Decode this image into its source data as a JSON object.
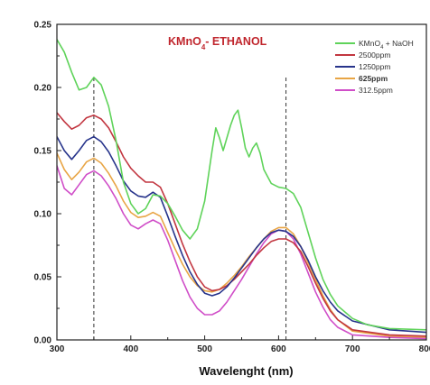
{
  "chart_data": {
    "type": "line",
    "title": "KMnO4- ETHANOL",
    "title_parts": {
      "pre": "KMnO",
      "sub": "4",
      "post": "- ETHANOL"
    },
    "xlabel": "Wavelenght (nm)",
    "ylabel": "",
    "xlim": [
      300,
      800
    ],
    "ylim": [
      0,
      0.25
    ],
    "xticks": [
      "300",
      "400",
      "500",
      "600",
      "700",
      "800"
    ],
    "yticks": [
      "0.00",
      "0.05",
      "0.10",
      "0.15",
      "0.20",
      "0.25"
    ],
    "grid": false,
    "legend_position": "top-right",
    "reference_lines_x": [
      350,
      610
    ],
    "series": [
      {
        "name": "KMnO4 + NaOH",
        "legend_parts": {
          "pre": "KMnO",
          "sub": "4",
          "post": "+ NaOH"
        },
        "bold": false,
        "color": "#5fd35a",
        "points": [
          [
            300,
            0.238
          ],
          [
            310,
            0.228
          ],
          [
            320,
            0.212
          ],
          [
            330,
            0.198
          ],
          [
            340,
            0.2
          ],
          [
            350,
            0.208
          ],
          [
            360,
            0.202
          ],
          [
            370,
            0.185
          ],
          [
            380,
            0.158
          ],
          [
            390,
            0.125
          ],
          [
            400,
            0.108
          ],
          [
            410,
            0.1
          ],
          [
            420,
            0.104
          ],
          [
            430,
            0.115
          ],
          [
            440,
            0.114
          ],
          [
            450,
            0.108
          ],
          [
            460,
            0.098
          ],
          [
            470,
            0.087
          ],
          [
            480,
            0.08
          ],
          [
            490,
            0.088
          ],
          [
            500,
            0.11
          ],
          [
            510,
            0.15
          ],
          [
            515,
            0.168
          ],
          [
            520,
            0.16
          ],
          [
            525,
            0.15
          ],
          [
            530,
            0.16
          ],
          [
            535,
            0.17
          ],
          [
            540,
            0.178
          ],
          [
            545,
            0.182
          ],
          [
            550,
            0.168
          ],
          [
            555,
            0.152
          ],
          [
            560,
            0.145
          ],
          [
            565,
            0.152
          ],
          [
            570,
            0.156
          ],
          [
            575,
            0.148
          ],
          [
            580,
            0.135
          ],
          [
            590,
            0.124
          ],
          [
            600,
            0.121
          ],
          [
            610,
            0.12
          ],
          [
            620,
            0.116
          ],
          [
            630,
            0.105
          ],
          [
            640,
            0.085
          ],
          [
            650,
            0.065
          ],
          [
            660,
            0.048
          ],
          [
            670,
            0.036
          ],
          [
            680,
            0.027
          ],
          [
            700,
            0.017
          ],
          [
            720,
            0.012
          ],
          [
            750,
            0.009
          ],
          [
            800,
            0.008
          ]
        ]
      },
      {
        "name": "2500ppm",
        "legend_parts": {
          "pre": "2500ppm",
          "sub": "",
          "post": ""
        },
        "bold": false,
        "color": "#c23640",
        "points": [
          [
            300,
            0.18
          ],
          [
            310,
            0.173
          ],
          [
            320,
            0.167
          ],
          [
            330,
            0.17
          ],
          [
            340,
            0.176
          ],
          [
            350,
            0.178
          ],
          [
            360,
            0.175
          ],
          [
            370,
            0.168
          ],
          [
            380,
            0.157
          ],
          [
            390,
            0.145
          ],
          [
            400,
            0.136
          ],
          [
            410,
            0.13
          ],
          [
            420,
            0.125
          ],
          [
            430,
            0.125
          ],
          [
            440,
            0.121
          ],
          [
            450,
            0.108
          ],
          [
            460,
            0.092
          ],
          [
            470,
            0.076
          ],
          [
            480,
            0.062
          ],
          [
            490,
            0.05
          ],
          [
            500,
            0.042
          ],
          [
            510,
            0.039
          ],
          [
            520,
            0.04
          ],
          [
            530,
            0.043
          ],
          [
            540,
            0.048
          ],
          [
            550,
            0.054
          ],
          [
            560,
            0.06
          ],
          [
            570,
            0.067
          ],
          [
            580,
            0.073
          ],
          [
            590,
            0.078
          ],
          [
            600,
            0.08
          ],
          [
            610,
            0.08
          ],
          [
            620,
            0.077
          ],
          [
            630,
            0.07
          ],
          [
            640,
            0.058
          ],
          [
            650,
            0.045
          ],
          [
            660,
            0.033
          ],
          [
            670,
            0.023
          ],
          [
            680,
            0.016
          ],
          [
            700,
            0.008
          ],
          [
            750,
            0.004
          ],
          [
            800,
            0.003
          ]
        ]
      },
      {
        "name": "1250ppm",
        "legend_parts": {
          "pre": "1250ppm",
          "sub": "",
          "post": ""
        },
        "bold": false,
        "color": "#27348b",
        "points": [
          [
            300,
            0.161
          ],
          [
            310,
            0.15
          ],
          [
            320,
            0.143
          ],
          [
            330,
            0.15
          ],
          [
            340,
            0.158
          ],
          [
            350,
            0.161
          ],
          [
            360,
            0.157
          ],
          [
            370,
            0.149
          ],
          [
            380,
            0.138
          ],
          [
            390,
            0.126
          ],
          [
            400,
            0.118
          ],
          [
            410,
            0.114
          ],
          [
            420,
            0.113
          ],
          [
            430,
            0.117
          ],
          [
            440,
            0.113
          ],
          [
            450,
            0.098
          ],
          [
            460,
            0.082
          ],
          [
            470,
            0.067
          ],
          [
            480,
            0.054
          ],
          [
            490,
            0.044
          ],
          [
            500,
            0.037
          ],
          [
            510,
            0.035
          ],
          [
            520,
            0.037
          ],
          [
            530,
            0.042
          ],
          [
            540,
            0.049
          ],
          [
            550,
            0.057
          ],
          [
            560,
            0.065
          ],
          [
            570,
            0.073
          ],
          [
            580,
            0.08
          ],
          [
            590,
            0.085
          ],
          [
            600,
            0.087
          ],
          [
            610,
            0.086
          ],
          [
            620,
            0.082
          ],
          [
            630,
            0.074
          ],
          [
            640,
            0.063
          ],
          [
            650,
            0.05
          ],
          [
            660,
            0.039
          ],
          [
            670,
            0.03
          ],
          [
            680,
            0.023
          ],
          [
            700,
            0.015
          ],
          [
            750,
            0.008
          ],
          [
            800,
            0.006
          ]
        ]
      },
      {
        "name": "625ppm",
        "legend_parts": {
          "pre": "625ppm",
          "sub": "",
          "post": ""
        },
        "bold": true,
        "color": "#e8a545",
        "points": [
          [
            300,
            0.148
          ],
          [
            310,
            0.135
          ],
          [
            320,
            0.127
          ],
          [
            330,
            0.133
          ],
          [
            340,
            0.141
          ],
          [
            350,
            0.144
          ],
          [
            360,
            0.14
          ],
          [
            370,
            0.132
          ],
          [
            380,
            0.122
          ],
          [
            390,
            0.11
          ],
          [
            400,
            0.101
          ],
          [
            410,
            0.097
          ],
          [
            420,
            0.098
          ],
          [
            430,
            0.101
          ],
          [
            440,
            0.098
          ],
          [
            450,
            0.085
          ],
          [
            460,
            0.072
          ],
          [
            470,
            0.06
          ],
          [
            480,
            0.05
          ],
          [
            490,
            0.043
          ],
          [
            500,
            0.039
          ],
          [
            510,
            0.038
          ],
          [
            520,
            0.04
          ],
          [
            530,
            0.045
          ],
          [
            540,
            0.051
          ],
          [
            550,
            0.058
          ],
          [
            560,
            0.066
          ],
          [
            570,
            0.073
          ],
          [
            580,
            0.08
          ],
          [
            590,
            0.086
          ],
          [
            600,
            0.089
          ],
          [
            610,
            0.089
          ],
          [
            620,
            0.084
          ],
          [
            630,
            0.074
          ],
          [
            640,
            0.061
          ],
          [
            650,
            0.048
          ],
          [
            660,
            0.035
          ],
          [
            670,
            0.024
          ],
          [
            680,
            0.016
          ],
          [
            700,
            0.007
          ],
          [
            750,
            0.003
          ],
          [
            800,
            0.002
          ]
        ]
      },
      {
        "name": "312.5ppm",
        "legend_parts": {
          "pre": "312.5ppm",
          "sub": "",
          "post": ""
        },
        "bold": false,
        "color": "#d04ec8",
        "points": [
          [
            300,
            0.138
          ],
          [
            310,
            0.12
          ],
          [
            320,
            0.115
          ],
          [
            330,
            0.123
          ],
          [
            340,
            0.131
          ],
          [
            350,
            0.134
          ],
          [
            360,
            0.13
          ],
          [
            370,
            0.122
          ],
          [
            380,
            0.112
          ],
          [
            390,
            0.1
          ],
          [
            400,
            0.091
          ],
          [
            410,
            0.088
          ],
          [
            420,
            0.092
          ],
          [
            430,
            0.095
          ],
          [
            440,
            0.092
          ],
          [
            450,
            0.079
          ],
          [
            460,
            0.063
          ],
          [
            470,
            0.047
          ],
          [
            480,
            0.034
          ],
          [
            490,
            0.025
          ],
          [
            500,
            0.02
          ],
          [
            510,
            0.02
          ],
          [
            520,
            0.023
          ],
          [
            530,
            0.03
          ],
          [
            540,
            0.039
          ],
          [
            550,
            0.048
          ],
          [
            560,
            0.058
          ],
          [
            570,
            0.068
          ],
          [
            580,
            0.077
          ],
          [
            590,
            0.084
          ],
          [
            600,
            0.087
          ],
          [
            610,
            0.086
          ],
          [
            620,
            0.08
          ],
          [
            630,
            0.068
          ],
          [
            640,
            0.053
          ],
          [
            650,
            0.038
          ],
          [
            660,
            0.026
          ],
          [
            670,
            0.016
          ],
          [
            680,
            0.01
          ],
          [
            700,
            0.004
          ],
          [
            750,
            0.002
          ],
          [
            800,
            0.001
          ]
        ]
      }
    ]
  }
}
